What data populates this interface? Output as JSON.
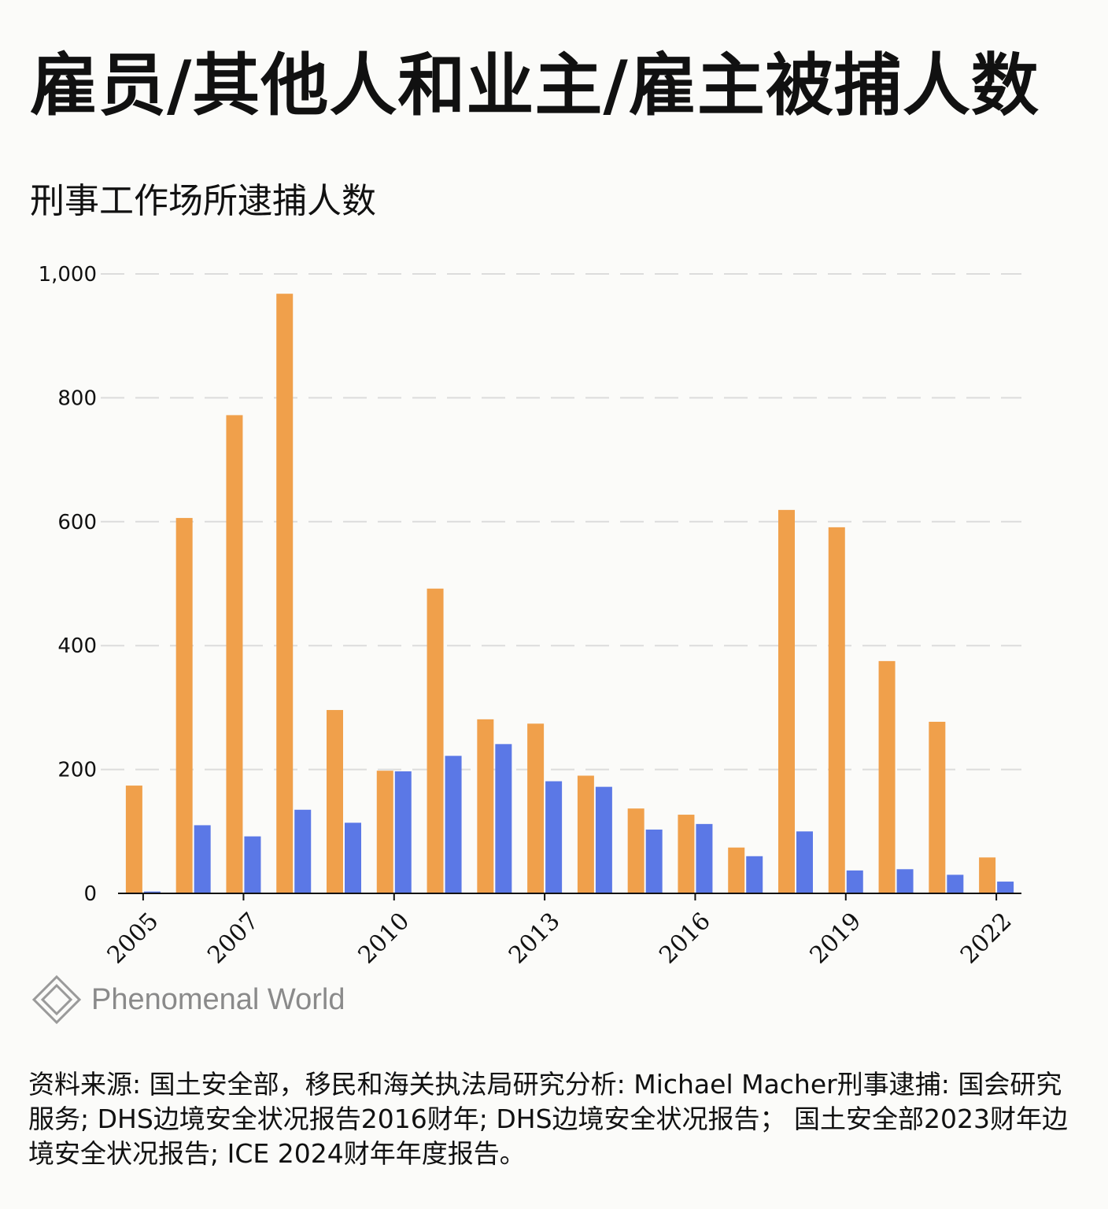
{
  "title": "雇员/其他人和业主/雇主被捕人数",
  "subtitle": "刑事工作场所逮捕人数",
  "source": "资料来源: 国土安全部，移民和海关执法局研究分析: Michael Macher刑事逮捕: 国会研究服务; DHS边境安全状况报告2016财年; DHS边境安全状况报告； 国土安全部2023财年边境安全状况报告; ICE 2024财年年度报告。",
  "logo": {
    "text": "Phenomenal World",
    "icon": "diamond-logo-icon"
  },
  "chart_data": {
    "type": "bar",
    "title": "刑事工作场所逮捕人数",
    "xlabel": "",
    "ylabel": "",
    "ylim": [
      0,
      1000
    ],
    "yticks": [
      0,
      200,
      400,
      600,
      800,
      1000
    ],
    "ytick_labels": [
      "0",
      "200",
      "400",
      "600",
      "800",
      "1,000"
    ],
    "categories": [
      "2005",
      "2006",
      "2007",
      "2008",
      "2009",
      "2010",
      "2011",
      "2012",
      "2013",
      "2014",
      "2015",
      "2016",
      "2017",
      "2018",
      "2019",
      "2020",
      "2021",
      "2022"
    ],
    "xtick_labels": [
      "2005",
      "2007",
      "2010",
      "2013",
      "2016",
      "2019",
      "2022"
    ],
    "grid": true,
    "series": [
      {
        "name": "雇员/其他人",
        "color": "#f0a04b",
        "values": [
          174,
          606,
          772,
          968,
          296,
          198,
          492,
          281,
          274,
          190,
          137,
          127,
          74,
          619,
          591,
          375,
          277,
          58
        ]
      },
      {
        "name": "业主/雇主",
        "color": "#5b78e6",
        "values": [
          3,
          110,
          92,
          135,
          114,
          197,
          222,
          241,
          181,
          172,
          103,
          112,
          60,
          100,
          37,
          39,
          30,
          19
        ]
      }
    ]
  }
}
